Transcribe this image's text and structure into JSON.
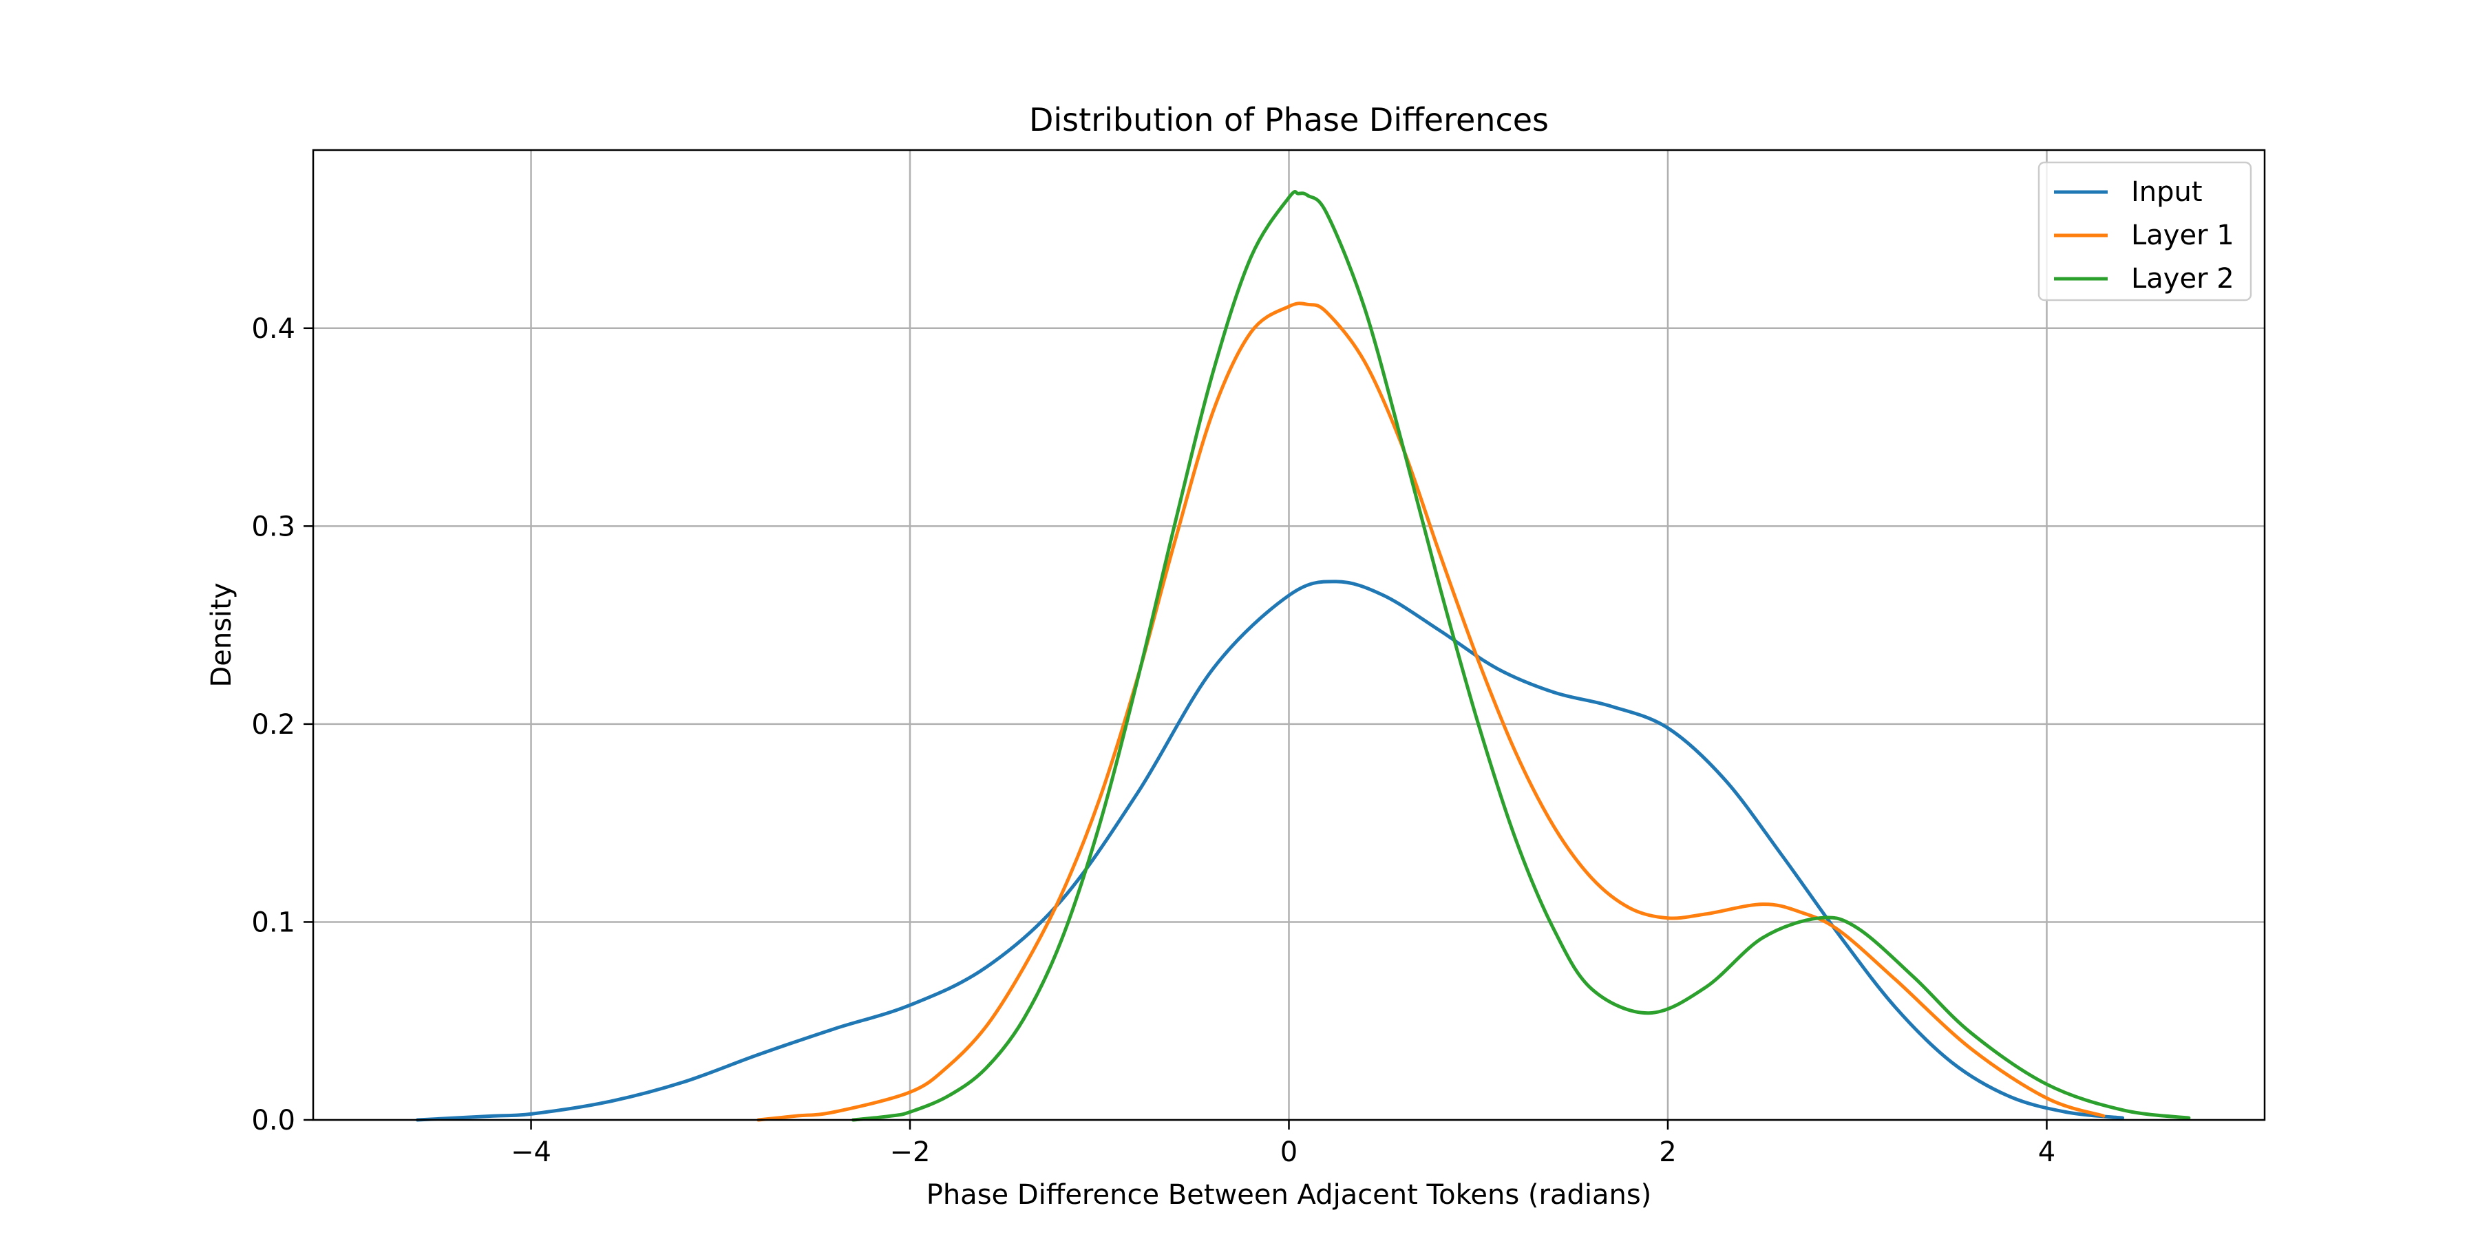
{
  "chart_data": {
    "type": "line",
    "title": "Distribution of Phase Differences",
    "xlabel": "Phase Difference Between Adjacent Tokens (radians)",
    "ylabel": "Density",
    "xlim": [
      -5.15,
      5.15
    ],
    "ylim": [
      0,
      0.49
    ],
    "xticks": [
      -4,
      -2,
      0,
      2,
      4
    ],
    "xtick_labels": [
      "−4",
      "−2",
      "0",
      "2",
      "4"
    ],
    "yticks": [
      0.0,
      0.1,
      0.2,
      0.3,
      0.4
    ],
    "ytick_labels": [
      "0.0",
      "0.1",
      "0.2",
      "0.3",
      "0.4"
    ],
    "grid": true,
    "legend_position": "top-right",
    "series": [
      {
        "name": "Input",
        "color": "#1f77b4",
        "x": [
          -4.6,
          -4.2,
          -4.0,
          -3.6,
          -3.2,
          -2.8,
          -2.4,
          -2.0,
          -1.6,
          -1.2,
          -0.8,
          -0.4,
          0.0,
          0.25,
          0.5,
          0.8,
          1.1,
          1.4,
          1.7,
          2.0,
          2.3,
          2.6,
          2.9,
          3.2,
          3.5,
          3.8,
          4.1,
          4.4
        ],
        "y": [
          0.0,
          0.002,
          0.003,
          0.009,
          0.019,
          0.033,
          0.046,
          0.058,
          0.077,
          0.111,
          0.165,
          0.228,
          0.265,
          0.272,
          0.265,
          0.247,
          0.228,
          0.216,
          0.209,
          0.198,
          0.172,
          0.134,
          0.094,
          0.057,
          0.029,
          0.012,
          0.004,
          0.001
        ]
      },
      {
        "name": "Layer 1",
        "color": "#ff7f0e",
        "x": [
          -2.8,
          -2.6,
          -2.4,
          -2.0,
          -1.8,
          -1.6,
          -1.4,
          -1.2,
          -1.0,
          -0.8,
          -0.6,
          -0.4,
          -0.2,
          0.0,
          0.1,
          0.2,
          0.4,
          0.6,
          0.8,
          1.0,
          1.2,
          1.4,
          1.6,
          1.8,
          2.0,
          2.2,
          2.5,
          2.7,
          2.9,
          3.2,
          3.6,
          4.0,
          4.3
        ],
        "y": [
          0.0,
          0.002,
          0.004,
          0.014,
          0.027,
          0.047,
          0.077,
          0.114,
          0.162,
          0.223,
          0.293,
          0.358,
          0.398,
          0.411,
          0.412,
          0.408,
          0.383,
          0.34,
          0.285,
          0.232,
          0.185,
          0.148,
          0.122,
          0.107,
          0.102,
          0.104,
          0.109,
          0.105,
          0.096,
          0.071,
          0.036,
          0.011,
          0.002
        ]
      },
      {
        "name": "Layer 2",
        "color": "#2ca02c",
        "x": [
          -2.3,
          -2.1,
          -2.0,
          -1.8,
          -1.6,
          -1.4,
          -1.2,
          -1.0,
          -0.8,
          -0.6,
          -0.4,
          -0.2,
          0.0,
          0.05,
          0.1,
          0.2,
          0.4,
          0.6,
          0.8,
          1.0,
          1.2,
          1.4,
          1.6,
          1.9,
          2.2,
          2.5,
          2.8,
          3.0,
          3.3,
          3.6,
          4.0,
          4.4,
          4.75
        ],
        "y": [
          0.0,
          0.002,
          0.004,
          0.012,
          0.026,
          0.051,
          0.091,
          0.149,
          0.222,
          0.302,
          0.378,
          0.436,
          0.466,
          0.468,
          0.467,
          0.458,
          0.41,
          0.341,
          0.268,
          0.2,
          0.141,
          0.096,
          0.066,
          0.054,
          0.067,
          0.092,
          0.102,
          0.097,
          0.072,
          0.044,
          0.018,
          0.005,
          0.001
        ]
      }
    ]
  }
}
